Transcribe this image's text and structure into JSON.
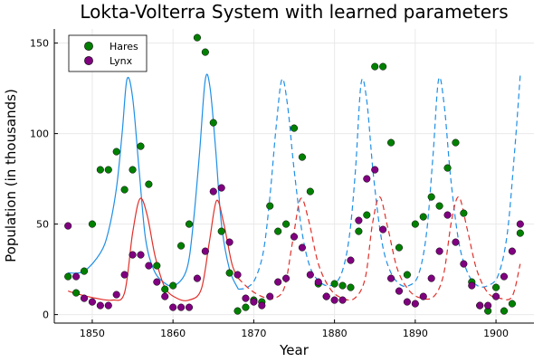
{
  "chart_data": {
    "type": "scatter",
    "title": "Lokta-Volterra System with learned parameters",
    "xlabel": "Year",
    "ylabel": "Population (in thousands)",
    "xlim": [
      1845.3,
      1904.7
    ],
    "ylim": [
      -4.7,
      157.8
    ],
    "xticks": [
      1850,
      1860,
      1870,
      1880,
      1890,
      1900
    ],
    "yticks": [
      0,
      50,
      100,
      150
    ],
    "grid": true,
    "legend_position": "top-left",
    "colors": {
      "hares_points": "#008000",
      "lynx_points": "#800080",
      "hares_curve": "#1f8fe6",
      "lynx_curve": "#e0302a",
      "grid": "#e9e9e9",
      "axis": "#000000"
    },
    "series": [
      {
        "name": "Hares",
        "kind": "scatter",
        "color": "#008000",
        "x": [
          1847,
          1848,
          1849,
          1850,
          1851,
          1852,
          1853,
          1854,
          1855,
          1856,
          1857,
          1858,
          1859,
          1860,
          1861,
          1862,
          1863,
          1864,
          1865,
          1866,
          1867,
          1868,
          1869,
          1870,
          1871,
          1872,
          1873,
          1874,
          1875,
          1876,
          1877,
          1878,
          1879,
          1880,
          1881,
          1882,
          1883,
          1884,
          1885,
          1886,
          1887,
          1888,
          1889,
          1890,
          1891,
          1892,
          1893,
          1894,
          1895,
          1896,
          1897,
          1898,
          1899,
          1900,
          1901,
          1902,
          1903
        ],
        "y": [
          21,
          12,
          24,
          50,
          80,
          80,
          90,
          69,
          80,
          93,
          72,
          27,
          14,
          16,
          38,
          50,
          153,
          145,
          106,
          46,
          23,
          2,
          4,
          8,
          7,
          60,
          46,
          50,
          103,
          87,
          68,
          17,
          10,
          17,
          16,
          15,
          46,
          55,
          137,
          137,
          95,
          37,
          22,
          50,
          54,
          65,
          60,
          81,
          95,
          56,
          18,
          5,
          2,
          15,
          2,
          6,
          45
        ]
      },
      {
        "name": "Lynx",
        "kind": "scatter",
        "color": "#800080",
        "x": [
          1847,
          1848,
          1849,
          1850,
          1851,
          1852,
          1853,
          1854,
          1855,
          1856,
          1857,
          1858,
          1859,
          1860,
          1861,
          1862,
          1863,
          1864,
          1865,
          1866,
          1867,
          1868,
          1869,
          1870,
          1871,
          1872,
          1873,
          1874,
          1875,
          1876,
          1877,
          1878,
          1879,
          1880,
          1881,
          1882,
          1883,
          1884,
          1885,
          1886,
          1887,
          1888,
          1889,
          1890,
          1891,
          1892,
          1893,
          1894,
          1895,
          1896,
          1897,
          1898,
          1899,
          1900,
          1901,
          1902,
          1903
        ],
        "y": [
          49,
          21,
          9,
          7,
          5,
          5,
          11,
          22,
          33,
          33,
          27,
          18,
          10,
          4,
          4,
          4,
          20,
          35,
          68,
          70,
          40,
          22,
          9,
          7,
          5,
          10,
          18,
          20,
          43,
          37,
          22,
          18,
          10,
          8,
          8,
          30,
          52,
          75,
          80,
          47,
          20,
          13,
          7,
          6,
          10,
          20,
          35,
          55,
          40,
          28,
          16,
          5,
          5,
          10,
          21,
          35,
          50
        ]
      }
    ],
    "curves": [
      {
        "label": "hares_fit",
        "style": "solid",
        "color": "#1f8fe6",
        "x": [
          1847,
          1849,
          1851,
          1852,
          1853,
          1853.7,
          1854.3,
          1855.0,
          1855.8,
          1856.6,
          1857.6,
          1858.8,
          1860.2,
          1861.7,
          1862.5,
          1863.3,
          1864.0,
          1864.6,
          1865.3,
          1866.0,
          1867.0,
          1868.1
        ],
        "y": [
          23,
          24,
          34,
          46,
          70,
          100,
          130,
          120,
          80,
          42,
          25,
          18,
          16,
          25,
          50,
          90,
          130,
          125,
          90,
          50,
          25,
          14
        ]
      },
      {
        "label": "hares_forecast",
        "style": "dashed",
        "color": "#1f8fe6",
        "x": [
          1868.1,
          1869.2,
          1870.2,
          1871.2,
          1872.0,
          1872.8,
          1873.5,
          1874.2,
          1875.0,
          1876.0,
          1877.0,
          1878.2,
          1879.5,
          1880.8,
          1881.8,
          1882.6,
          1883.3,
          1884.0,
          1884.8,
          1885.8,
          1886.8,
          1888.0,
          1889.2,
          1890.4,
          1891.4,
          1892.2,
          1892.9,
          1893.6,
          1894.4,
          1895.4,
          1896.5,
          1897.7,
          1899.0,
          1900.3,
          1901.4,
          1902.3,
          1903.0
        ],
        "y": [
          14,
          15,
          20,
          35,
          65,
          105,
          130,
          115,
          80,
          45,
          26,
          18,
          16,
          22,
          42,
          80,
          128,
          118,
          78,
          42,
          25,
          17,
          16,
          22,
          45,
          88,
          130,
          115,
          75,
          40,
          23,
          16,
          16,
          22,
          45,
          90,
          132
        ]
      },
      {
        "label": "lynx_fit",
        "style": "solid",
        "color": "#e0302a",
        "x": [
          1847,
          1848.5,
          1850.5,
          1852.5,
          1854.0,
          1855.0,
          1855.9,
          1856.8,
          1857.8,
          1859.0,
          1860.5,
          1862.0,
          1863.5,
          1864.5,
          1865.4,
          1866.3,
          1867.3,
          1868.1
        ],
        "y": [
          13,
          11,
          9,
          8,
          12,
          45,
          64,
          55,
          32,
          15,
          9,
          8,
          14,
          40,
          63,
          50,
          28,
          20
        ]
      },
      {
        "label": "lynx_forecast",
        "style": "dashed",
        "color": "#e0302a",
        "x": [
          1868.1,
          1869.5,
          1871.0,
          1872.5,
          1873.8,
          1874.8,
          1875.8,
          1876.8,
          1878.0,
          1879.5,
          1881.0,
          1882.5,
          1883.8,
          1884.7,
          1885.6,
          1886.6,
          1887.8,
          1889.3,
          1890.8,
          1892.3,
          1893.5,
          1894.5,
          1895.4,
          1896.4,
          1897.6,
          1899.0,
          1900.5,
          1902.0,
          1903.0
        ],
        "y": [
          20,
          14,
          10,
          9,
          15,
          40,
          64,
          52,
          28,
          14,
          9,
          9,
          20,
          50,
          65,
          48,
          25,
          13,
          9,
          10,
          22,
          52,
          65,
          48,
          25,
          12,
          9,
          10,
          28
        ]
      }
    ]
  }
}
